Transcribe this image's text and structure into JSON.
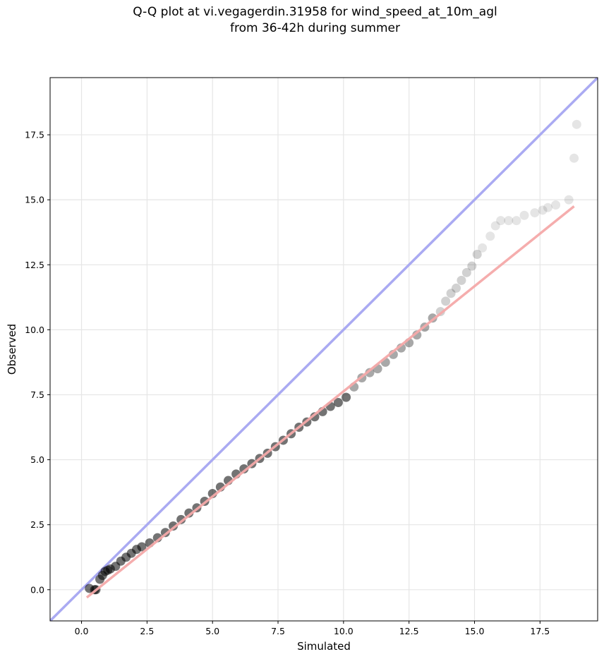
{
  "chart_data": {
    "type": "scatter",
    "title_lines": [
      "Q-Q plot at vi.vegagerdin.31958 for wind_speed_at_10m_agl",
      "from 36-42h during summer"
    ],
    "xlabel": "Simulated",
    "ylabel": "Observed",
    "xlim": [
      -1.2,
      19.7
    ],
    "ylim": [
      -1.2,
      19.7
    ],
    "xticks": [
      0.0,
      2.5,
      5.0,
      7.5,
      10.0,
      12.5,
      15.0,
      17.5
    ],
    "xtick_labels": [
      "0.0",
      "2.5",
      "5.0",
      "7.5",
      "10.0",
      "12.5",
      "15.0",
      "17.5"
    ],
    "yticks": [
      0.0,
      2.5,
      5.0,
      7.5,
      10.0,
      12.5,
      15.0,
      17.5
    ],
    "ytick_labels": [
      "0.0",
      "2.5",
      "5.0",
      "7.5",
      "10.0",
      "12.5",
      "15.0",
      "17.5"
    ],
    "grid": true,
    "colors": {
      "points": "#000000",
      "identity_line": "#aaaaf2",
      "fit_line": "#f4a9a9"
    },
    "identity_line": {
      "x": [
        -1.2,
        19.7
      ],
      "y": [
        -1.2,
        19.7
      ]
    },
    "fit_line": {
      "x": [
        0.2,
        18.8
      ],
      "y": [
        -0.3,
        14.75
      ]
    },
    "quantiles": {
      "x": [
        0.3,
        0.5,
        0.55,
        0.7,
        0.8,
        0.9,
        1.0,
        1.1,
        1.3,
        1.5,
        1.7,
        1.9,
        2.1,
        2.3,
        2.6,
        2.9,
        3.2,
        3.5,
        3.8,
        4.1,
        4.4,
        4.7,
        5.0,
        5.3,
        5.6,
        5.9,
        6.2,
        6.5,
        6.8,
        7.1,
        7.4,
        7.7,
        8.0,
        8.3,
        8.6,
        8.9,
        9.2,
        9.5,
        9.8,
        10.1,
        10.4,
        10.7,
        11.0,
        11.3,
        11.6,
        11.9,
        12.2,
        12.5,
        12.8,
        13.1,
        13.4,
        13.7,
        13.9,
        14.1,
        14.3,
        14.5,
        14.7,
        14.9,
        15.1,
        15.3,
        15.6,
        15.8,
        16.0,
        16.3,
        16.6,
        16.9,
        17.3,
        17.6,
        17.8,
        18.1,
        18.6,
        18.8,
        18.9
      ],
      "y": [
        0.05,
        0.0,
        0.0,
        0.4,
        0.55,
        0.7,
        0.75,
        0.8,
        0.9,
        1.1,
        1.25,
        1.4,
        1.55,
        1.65,
        1.8,
        2.0,
        2.2,
        2.45,
        2.7,
        2.95,
        3.15,
        3.4,
        3.7,
        3.95,
        4.2,
        4.45,
        4.65,
        4.85,
        5.05,
        5.25,
        5.5,
        5.75,
        6.0,
        6.25,
        6.45,
        6.65,
        6.85,
        7.05,
        7.2,
        7.4,
        7.8,
        8.15,
        8.35,
        8.5,
        8.75,
        9.05,
        9.3,
        9.5,
        9.8,
        10.1,
        10.45,
        10.7,
        11.1,
        11.4,
        11.6,
        11.9,
        12.2,
        12.45,
        12.9,
        13.15,
        13.6,
        14.0,
        14.2,
        14.2,
        14.2,
        14.4,
        14.5,
        14.6,
        14.7,
        14.8,
        15.0,
        16.6,
        17.9
      ]
    }
  }
}
